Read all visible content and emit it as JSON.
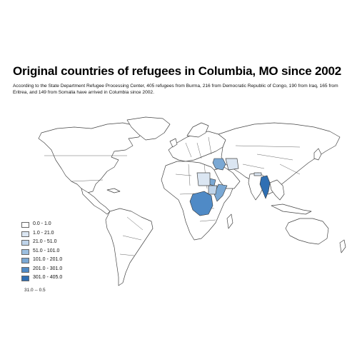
{
  "title": "Original countries of refugees in Columbia, MO since 2002",
  "description": "According to the State Department Refugee Processing Center, 405 refugees from Burma, 216 from Democratic Republic of Congo, 190 from Iraq, 165 from Eritrea, and 149 from Somalia have arrived in Columbia since 2002.",
  "legend": {
    "items": [
      {
        "label": "0.0 - 1.0",
        "color": "#ffffff"
      },
      {
        "label": "1.0 - 21.0",
        "color": "#dbe6f2"
      },
      {
        "label": "21.0 - 51.0",
        "color": "#bfd4ea"
      },
      {
        "label": "51.0 - 101.0",
        "color": "#9cbfe0"
      },
      {
        "label": "101.0 - 201.0",
        "color": "#7aa8d4"
      },
      {
        "label": "201.0 - 301.0",
        "color": "#4f8ac6"
      },
      {
        "label": "301.0 - 405.0",
        "color": "#2f6fb3"
      }
    ]
  },
  "scale_text": "31.0 -- 0.5",
  "highlighted_countries": [
    {
      "country": "Burma",
      "refugees": 405,
      "color": "#2f6fb3"
    },
    {
      "country": "Democratic Republic of Congo",
      "refugees": 216,
      "color": "#4f8ac6"
    },
    {
      "country": "Iraq",
      "refugees": 190,
      "color": "#7aa8d4"
    },
    {
      "country": "Eritrea",
      "refugees": 165,
      "color": "#7aa8d4"
    },
    {
      "country": "Somalia",
      "refugees": 149,
      "color": "#7aa8d4"
    }
  ]
}
